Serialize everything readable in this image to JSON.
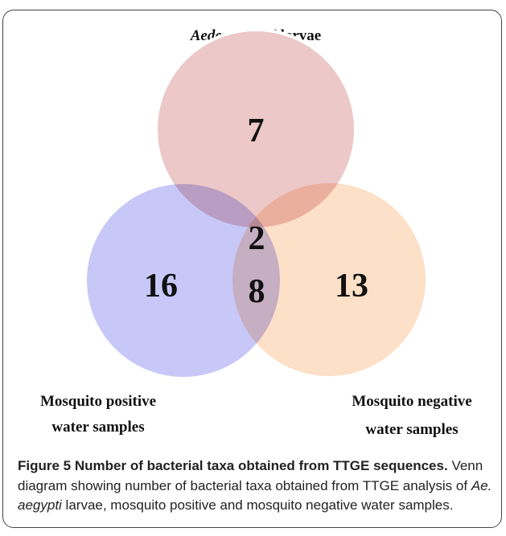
{
  "diagram": {
    "title": {
      "italic": "Aedes aegypti",
      "rest": "larvae"
    },
    "regions": {
      "top_only": 7,
      "top_left_right": 2,
      "left_only": 16,
      "left_right": 8,
      "right_only": 13
    },
    "left_label": [
      "Mosquito positive",
      "water samples"
    ],
    "right_label": [
      "Mosquito negative",
      "water samples"
    ]
  },
  "caption": {
    "label": "Figure 5",
    "title": "Number of bacterial taxa obtained from TTGE sequences.",
    "text": [
      "Venn diagram showing number of bacterial taxa obtained from TTGE analysis of ",
      "Ae. aegypti",
      " larvae, mosquito positive and mosquito negative water samples."
    ]
  }
}
